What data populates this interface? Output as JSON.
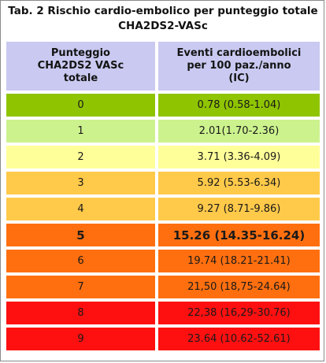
{
  "title": {
    "line1": "Tab. 2 Rischio cardio-embolico per punteggio totale",
    "line2": "CHA2DS2-VASc"
  },
  "header": {
    "col1": [
      "Punteggio",
      "CHA2DS2 VASc",
      "totale"
    ],
    "col2": [
      "Eventi cardioembolici",
      "per 100 paz./anno",
      "(IC)"
    ]
  },
  "rows": [
    {
      "score": "0",
      "events": "0.78 (0.58-1.04)",
      "color": "#8fc400",
      "bold": false
    },
    {
      "score": "1",
      "events": "2.01(1.70-2.36)",
      "color": "#ccf28e",
      "bold": false
    },
    {
      "score": "2",
      "events": "3.71 (3.36-4.09)",
      "color": "#ffff99",
      "bold": false
    },
    {
      "score": "3",
      "events": "5.92 (5.53-6.34)",
      "color": "#ffc94a",
      "bold": false
    },
    {
      "score": "4",
      "events": "9.27 (8.71-9.86)",
      "color": "#ffc94a",
      "bold": false
    },
    {
      "score": "5",
      "events": "15.26 (14.35-16.24)",
      "color": "#ff6f0f",
      "bold": true
    },
    {
      "score": "6",
      "events": "19.74 (18.21-21.41)",
      "color": "#ff6f0f",
      "bold": false
    },
    {
      "score": "7",
      "events": "21,50 (18,75-24.64)",
      "color": "#ff6f0f",
      "bold": false
    },
    {
      "score": "8",
      "events": "22,38 (16,29-30.76)",
      "color": "#ff1010",
      "bold": false
    },
    {
      "score": "9",
      "events": "23.64 (10.62-52.61)",
      "color": "#ff1010",
      "bold": false
    }
  ]
}
